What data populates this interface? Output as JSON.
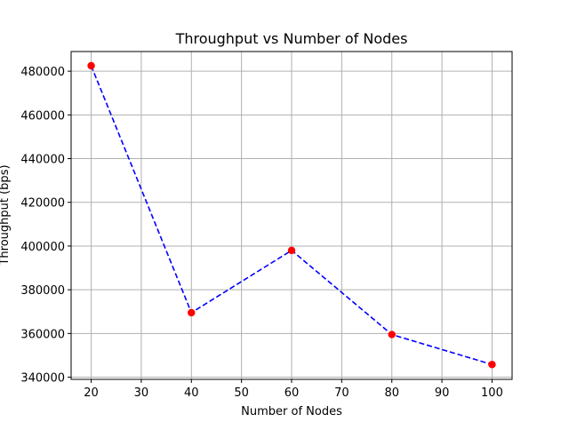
{
  "chart_data": {
    "type": "line",
    "title": "Throughput vs Number of Nodes",
    "xlabel": "Number of Nodes",
    "ylabel": "Throughput (bps)",
    "x": [
      20,
      40,
      60,
      80,
      100
    ],
    "y": [
      482500,
      369500,
      398000,
      359500,
      345800
    ],
    "xlim": [
      16,
      104
    ],
    "ylim": [
      339000,
      489000
    ],
    "xticks": [
      20,
      30,
      40,
      50,
      60,
      70,
      80,
      90,
      100
    ],
    "yticks": [
      340000,
      360000,
      380000,
      400000,
      420000,
      440000,
      460000,
      480000
    ],
    "grid": true,
    "line_color": "#0000ff",
    "line_style": "dashed",
    "marker_color": "#ff0000",
    "axes_color": "#000000",
    "grid_color": "#b0b0b0"
  }
}
